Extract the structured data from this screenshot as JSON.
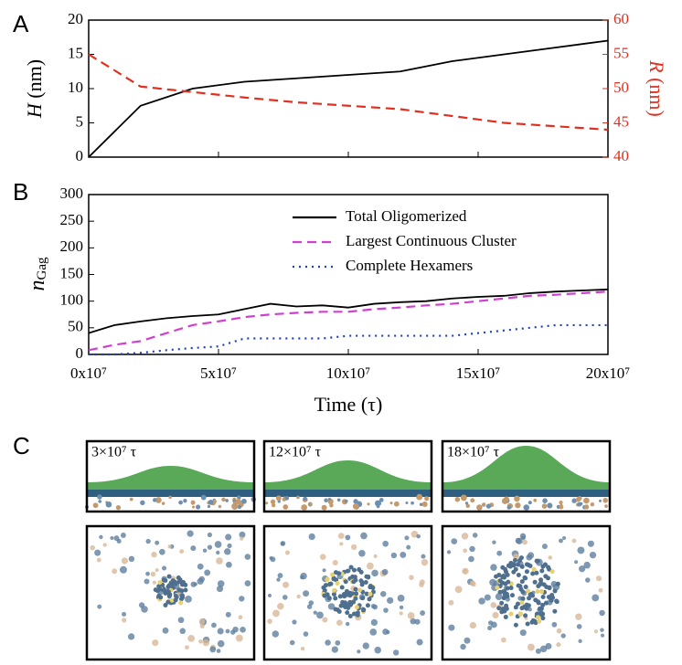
{
  "chart_data": [
    {
      "type": "line",
      "panel_label": "A",
      "y_label_italic": "H",
      "y_label": "(nm)",
      "y2_label_italic": "R",
      "y2_label": "(nm)",
      "x": [
        0,
        20000000,
        40000000,
        60000000,
        80000000,
        100000000,
        120000000,
        140000000,
        160000000,
        180000000,
        200000000
      ],
      "xlim": [
        0,
        200000000
      ],
      "ylim": [
        0,
        20
      ],
      "yticks": [
        0,
        5,
        10,
        15,
        20
      ],
      "y2lim": [
        40,
        60
      ],
      "y2ticks": [
        40,
        45,
        50,
        55,
        60
      ],
      "series": [
        {
          "name": "H",
          "color": "#000000",
          "style": "solid",
          "values": [
            0,
            7.5,
            10,
            11,
            11.5,
            12,
            12.5,
            14,
            15,
            16,
            17
          ]
        },
        {
          "name": "R",
          "color": "#e03020",
          "style": "dashed",
          "axis": "y2",
          "values": [
            55,
            50.3,
            49.5,
            48.7,
            48,
            47.5,
            47,
            46,
            45,
            44.5,
            44
          ]
        }
      ]
    },
    {
      "type": "line",
      "panel_label": "B",
      "y_label": "n",
      "y_label_subscript": "Gag",
      "x_label": "Time (τ)",
      "x": [
        0,
        10000000,
        20000000,
        30000000,
        40000000,
        50000000,
        60000000,
        70000000,
        80000000,
        90000000,
        100000000,
        110000000,
        120000000,
        130000000,
        140000000,
        150000000,
        160000000,
        170000000,
        180000000,
        190000000,
        200000000
      ],
      "xlim": [
        0,
        200000000
      ],
      "xticks": [
        {
          "value": 0,
          "label": "0x10⁷"
        },
        {
          "value": 50000000,
          "label": "5x10⁷"
        },
        {
          "value": 100000000,
          "label": "10x10⁷"
        },
        {
          "value": 150000000,
          "label": "15x10⁷"
        },
        {
          "value": 200000000,
          "label": "20x10⁷"
        }
      ],
      "ylim": [
        0,
        300
      ],
      "yticks": [
        0,
        50,
        100,
        150,
        200,
        250,
        300
      ],
      "series": [
        {
          "name": "Total Oligomerized",
          "color": "#000000",
          "style": "solid",
          "values": [
            40,
            55,
            62,
            68,
            72,
            75,
            85,
            95,
            90,
            92,
            88,
            95,
            98,
            100,
            105,
            108,
            110,
            115,
            118,
            120,
            122
          ]
        },
        {
          "name": "Largest Continuous Cluster",
          "color": "#d040d0",
          "style": "dashed",
          "values": [
            8,
            18,
            25,
            40,
            55,
            62,
            70,
            75,
            78,
            80,
            80,
            85,
            88,
            92,
            95,
            100,
            105,
            110,
            112,
            115,
            118
          ]
        },
        {
          "name": "Complete Hexamers",
          "color": "#2040c0",
          "style": "dotted",
          "values": [
            0,
            0,
            3,
            8,
            12,
            15,
            30,
            30,
            30,
            30,
            35,
            35,
            35,
            35,
            35,
            40,
            45,
            50,
            55,
            55,
            55
          ]
        }
      ]
    }
  ],
  "panel_c": {
    "panel_label": "C",
    "labels": [
      "3×10⁷ τ",
      "12×10⁷ τ",
      "18×10⁷ τ"
    ]
  }
}
